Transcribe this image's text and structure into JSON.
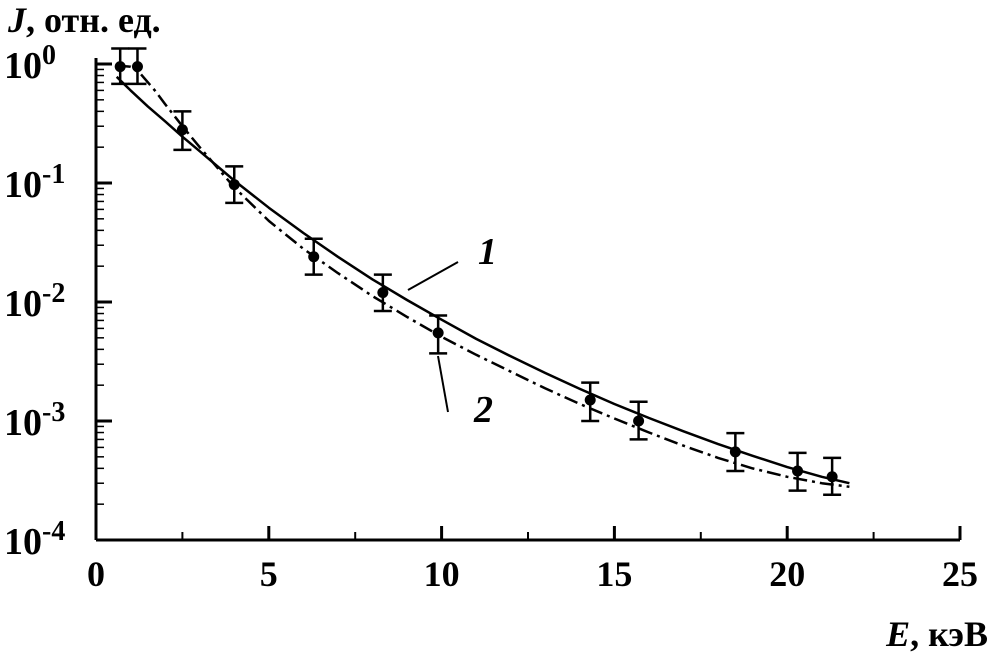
{
  "chart_data": {
    "type": "scatter",
    "ylabel_symbol": "J",
    "ylabel_unit": ", отн. ед.",
    "xlabel_symbol": "E",
    "xlabel_unit": ", кэВ",
    "xlim": [
      0,
      25
    ],
    "ylim": [
      0.0001,
      1
    ],
    "y_scale": "log",
    "x_ticks": [
      "0",
      "5",
      "10",
      "15",
      "20",
      "25"
    ],
    "y_tick_base": "10",
    "y_tick_exponents": [
      "0",
      "-1",
      "-2",
      "-3",
      "-4"
    ],
    "grid": false,
    "points": {
      "x": [
        0.7,
        1.2,
        2.5,
        4.0,
        6.3,
        8.3,
        9.9,
        14.3,
        15.7,
        18.5,
        20.3,
        21.3
      ],
      "y": [
        0.95,
        0.95,
        0.28,
        0.097,
        0.024,
        0.012,
        0.0055,
        0.0015,
        0.001,
        0.00055,
        0.00038,
        0.00034
      ],
      "y_err_low": [
        0.68,
        0.68,
        0.19,
        0.068,
        0.017,
        0.0084,
        0.0037,
        0.001,
        0.0007,
        0.00038,
        0.00026,
        0.00024
      ],
      "y_err_high": [
        1.35,
        1.35,
        0.4,
        0.138,
        0.034,
        0.017,
        0.0077,
        0.0021,
        0.00145,
        0.00079,
        0.00054,
        0.00049
      ]
    },
    "curves": [
      {
        "label": "1",
        "style": "solid",
        "x": [
          0.6,
          1,
          1.5,
          2,
          2.5,
          3,
          4,
          5,
          6,
          7,
          8,
          9,
          10,
          11,
          12,
          13,
          14,
          15,
          16,
          17,
          18,
          19,
          20,
          21,
          21.8
        ],
        "y": [
          0.78,
          0.6,
          0.44,
          0.33,
          0.245,
          0.185,
          0.105,
          0.062,
          0.038,
          0.024,
          0.0155,
          0.0104,
          0.0071,
          0.0049,
          0.0035,
          0.00253,
          0.00186,
          0.00139,
          0.00106,
          0.00082,
          0.00064,
          0.00051,
          0.00041,
          0.00034,
          0.0003
        ]
      },
      {
        "label": "2",
        "style": "dash-dot",
        "x": [
          0.6,
          1,
          1.3,
          1.7,
          2,
          2.5,
          3,
          4,
          5,
          6,
          7,
          8,
          9,
          10,
          11,
          12,
          13,
          14,
          15,
          16,
          17,
          18,
          19,
          20,
          21,
          21.8
        ],
        "y": [
          0.97,
          0.95,
          0.82,
          0.6,
          0.46,
          0.3,
          0.2,
          0.092,
          0.048,
          0.028,
          0.0175,
          0.0112,
          0.0075,
          0.0051,
          0.0036,
          0.0026,
          0.00188,
          0.00139,
          0.00105,
          0.0008,
          0.00062,
          0.00049,
          0.0004,
          0.00034,
          0.0003,
          0.00028
        ]
      }
    ]
  }
}
